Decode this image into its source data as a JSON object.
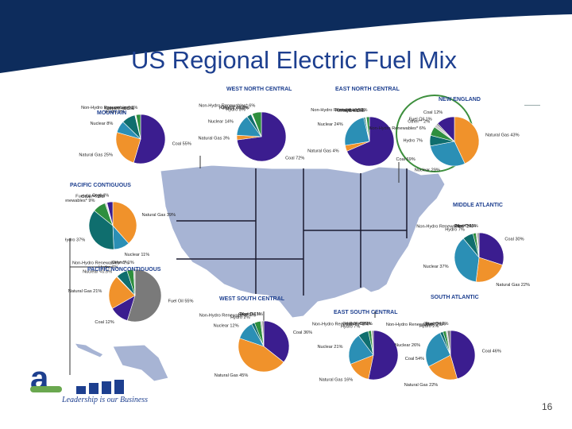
{
  "title": "US Regional Electric Fuel Mix",
  "page_number": "16",
  "footer": {
    "tagline": "Leadership is our Business"
  },
  "colors": {
    "header_bar": "#0d2c5c",
    "title": "#1d3f8f",
    "map_fill": "#a7b4d4",
    "map_stroke": "#ffffff",
    "highlight_circle": "#3d8f3d",
    "coal": "#3b1d8f",
    "natural_gas": "#f0922b",
    "nuclear": "#2b8fb5",
    "hydro": "#0f6e6e",
    "fuel_oil": "#7a7a7a",
    "non_hydro_renewables": "#2e8f3e",
    "other": "#c8c8c8"
  },
  "chart_data": [
    {
      "type": "pie",
      "title": "MOUNTAIN",
      "labels": [
        "Coal",
        "Natural Gas",
        "Nuclear",
        "Hydro",
        "Fuel Oil",
        "Other**",
        "Non-Hydro Renewables*"
      ],
      "display": [
        "Coal 55%",
        "Natural Gas 25%",
        "Nuclear 8%",
        "Hydro 9%",
        "Fuel Oil <0.5%",
        "Other** <0.5%",
        "Non-Hydro Renewables* 3%"
      ],
      "values": [
        55,
        25,
        8,
        9,
        0.4,
        0.4,
        3
      ]
    },
    {
      "type": "pie",
      "title": "WEST NORTH CENTRAL",
      "labels": [
        "Coal",
        "Natural Gas",
        "Nuclear",
        "Hydro",
        "Fuel Oil",
        "Other**",
        "Non-Hydro Renewables*"
      ],
      "display": [
        "Coal 72%",
        "Natural Gas 3%",
        "Nuclear 14%",
        "Hydro 3%",
        "Fuel Oil <0.5%",
        "Other** <0.5%",
        "Non-Hydro Renewables* 6%"
      ],
      "values": [
        72,
        3,
        14,
        3,
        0.4,
        0.4,
        6
      ]
    },
    {
      "type": "pie",
      "title": "EAST NORTH CENTRAL",
      "labels": [
        "Coal",
        "Natural Gas",
        "Nuclear",
        "Hydro",
        "Fuel Oil",
        "Other**",
        "Non-Hydro Renewables*"
      ],
      "display": [
        "Coal 69%",
        "Natural Gas 4%",
        "Nuclear 24%",
        "Hydro 1%",
        "Fuel Oil <0.5%",
        "Other** <0.5%",
        "Non-Hydro Renewables* 2%"
      ],
      "values": [
        69,
        4,
        24,
        1,
        0.4,
        0.4,
        2
      ]
    },
    {
      "type": "pie",
      "title": "NEW ENGLAND",
      "labels": [
        "Natural Gas",
        "Nuclear",
        "Hydro",
        "Non-Hydro Renewables*",
        "Other**",
        "Fuel Oil",
        "Coal"
      ],
      "display": [
        "Natural Gas 43%",
        "Nuclear 29%",
        "Hydro 7%",
        "Non-Hydro Renewables* 6%",
        "Other** 2%",
        "Fuel Oil 1%",
        "Coal 12%"
      ],
      "values": [
        43,
        29,
        7,
        6,
        2,
        1,
        12
      ]
    },
    {
      "type": "pie",
      "title": "PACIFIC CONTIGUOUS",
      "labels": [
        "Natural Gas",
        "Nuclear",
        "Hydro",
        "Non-Hydro Renewables*",
        "Other**",
        "Fuel Oil",
        "Coal"
      ],
      "display": [
        "Natural Gas 39%",
        "Nuclear 11%",
        "Hydro 37%",
        "Non-Hydro Renewables* 9%",
        "Other** 1%",
        "Fuel Oil <0.5%",
        "Coal 4%"
      ],
      "values": [
        39,
        11,
        37,
        9,
        1,
        0.4,
        4
      ]
    },
    {
      "type": "pie",
      "title": "MIDDLE ATLANTIC",
      "labels": [
        "Coal",
        "Natural Gas",
        "Nuclear",
        "Hydro",
        "Non-Hydro Renewables*",
        "Other**",
        "Fuel Oil"
      ],
      "display": [
        "Coal 30%",
        "Natural Gas 22%",
        "Nuclear 37%",
        "Hydro 7%",
        "Non-Hydro Renewables* 2%",
        "Other** 1%",
        "Fuel Oil 1%"
      ],
      "values": [
        30,
        22,
        37,
        7,
        2,
        1,
        1
      ]
    },
    {
      "type": "pie",
      "title": "PACIFIC NONCONTIGUOUS",
      "labels": [
        "Fuel Oil",
        "Coal",
        "Natural Gas",
        "Nuclear",
        "Hydro",
        "Non-Hydro Renewables*",
        "Other**"
      ],
      "display": [
        "Fuel Oil 55%",
        "Coal 12%",
        "Natural Gas 21%",
        "Nuclear <0.5%",
        "Hydro 7%",
        "Non-Hydro Renewables* 4%",
        "Other** 1%"
      ],
      "values": [
        55,
        12,
        21,
        0.4,
        7,
        4,
        1
      ]
    },
    {
      "type": "pie",
      "title": "WEST SOUTH CENTRAL",
      "labels": [
        "Coal",
        "Natural Gas",
        "Nuclear",
        "Hydro",
        "Non-Hydro Renewables*",
        "Other**",
        "Fuel Oil"
      ],
      "display": [
        "Coal 36%",
        "Natural Gas 45%",
        "Nuclear 12%",
        "Hydro 2%",
        "Non-Hydro Renewables* 4%",
        "Other** 1%",
        "Fuel Oil 1%"
      ],
      "values": [
        36,
        45,
        12,
        2,
        4,
        1,
        1
      ]
    },
    {
      "type": "pie",
      "title": "EAST SOUTH CENTRAL",
      "labels": [
        "Coal",
        "Natural Gas",
        "Nuclear",
        "Hydro",
        "Non-Hydro Renewables*",
        "Other**",
        "Fuel Oil"
      ],
      "display": [
        "Coal 54%",
        "Natural Gas 16%",
        "Nuclear 21%",
        "Hydro 7%",
        "Non-Hydro Renewables* 2%",
        "Other** <0.5%",
        "Fuel Oil 1%"
      ],
      "values": [
        54,
        16,
        21,
        7,
        2,
        0.4,
        1
      ]
    },
    {
      "type": "pie",
      "title": "SOUTH ATLANTIC",
      "labels": [
        "Coal",
        "Natural Gas",
        "Nuclear",
        "Hydro",
        "Non-Hydro Renewables*",
        "Other**",
        "Fuel Oil"
      ],
      "display": [
        "Coal 46%",
        "Natural Gas 22%",
        "Nuclear 26%",
        "Hydro 2%",
        "Non-Hydro Renewables* 2%",
        "Other** 1%",
        "Fuel Oil 2%"
      ],
      "values": [
        46,
        22,
        26,
        2,
        2,
        1,
        2
      ]
    }
  ]
}
